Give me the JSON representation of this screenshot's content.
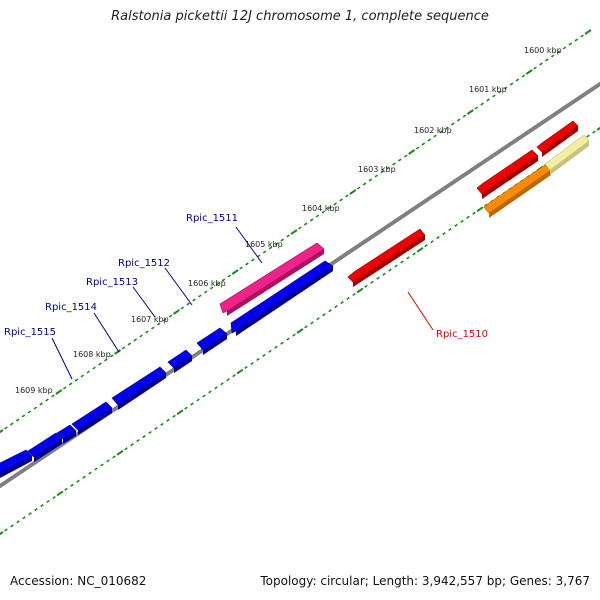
{
  "title": "Ralstonia pickettii 12J chromosome 1, complete sequence",
  "footer": {
    "accession": "Accession: NC_010682",
    "summary": "Topology: circular; Length: 3,942,557 bp; Genes: 3,767"
  },
  "scale": {
    "unit_labels": [
      "1600 kbp",
      "1601 kbp",
      "1602 kbp",
      "1603 kbp",
      "1604 kbp",
      "1605 kbp",
      "1606 kbp",
      "1607 kbp",
      "1608 kbp",
      "1609 kbp"
    ]
  },
  "genes": [
    {
      "label": "Rpic_1511",
      "color": "#00008b"
    },
    {
      "label": "Rpic_1512",
      "color": "#00008b"
    },
    {
      "label": "Rpic_1513",
      "color": "#00008b"
    },
    {
      "label": "Rpic_1514",
      "color": "#00008b"
    },
    {
      "label": "Rpic_1515",
      "color": "#00008b"
    },
    {
      "label": "Rpic_1510",
      "color": "#dd0000"
    }
  ],
  "colors": {
    "backbone": "#808080",
    "tick": "#1a8a1a",
    "forward_gene": "#0000ee",
    "pink_gene": "#ee2288",
    "red_gene": "#ee0000",
    "orange_gene": "#ff8c00",
    "pale_gene": "#f3eea0"
  }
}
